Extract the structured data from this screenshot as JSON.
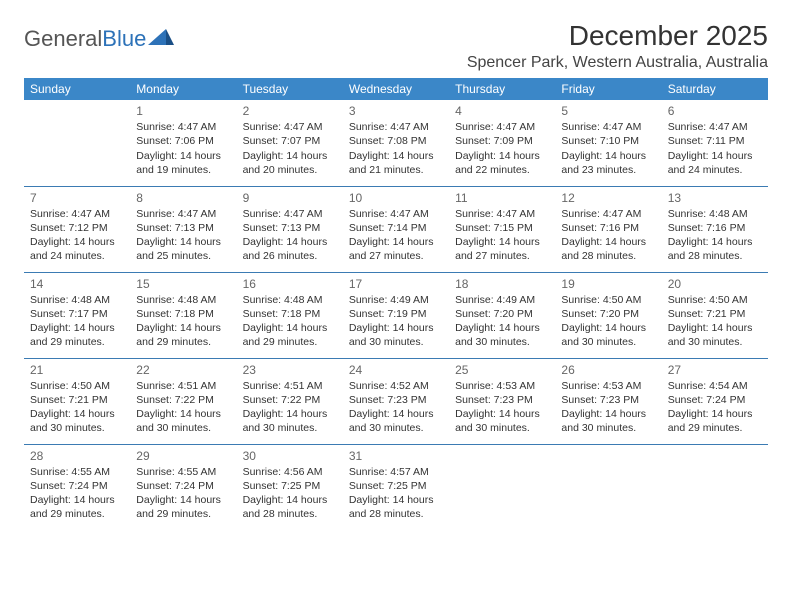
{
  "logo": {
    "word1": "General",
    "word2": "Blue"
  },
  "title": "December 2025",
  "location": "Spencer Park, Western Australia, Australia",
  "day_headers": [
    "Sunday",
    "Monday",
    "Tuesday",
    "Wednesday",
    "Thursday",
    "Friday",
    "Saturday"
  ],
  "colors": {
    "header_bg": "#3b87c8",
    "header_text": "#ffffff",
    "row_border": "#3b7bb3",
    "logo_blue": "#2d72b8"
  },
  "weeks": [
    [
      {
        "day": "",
        "sunrise": "",
        "sunset": "",
        "daylight": ""
      },
      {
        "day": "1",
        "sunrise": "Sunrise: 4:47 AM",
        "sunset": "Sunset: 7:06 PM",
        "daylight": "Daylight: 14 hours and 19 minutes."
      },
      {
        "day": "2",
        "sunrise": "Sunrise: 4:47 AM",
        "sunset": "Sunset: 7:07 PM",
        "daylight": "Daylight: 14 hours and 20 minutes."
      },
      {
        "day": "3",
        "sunrise": "Sunrise: 4:47 AM",
        "sunset": "Sunset: 7:08 PM",
        "daylight": "Daylight: 14 hours and 21 minutes."
      },
      {
        "day": "4",
        "sunrise": "Sunrise: 4:47 AM",
        "sunset": "Sunset: 7:09 PM",
        "daylight": "Daylight: 14 hours and 22 minutes."
      },
      {
        "day": "5",
        "sunrise": "Sunrise: 4:47 AM",
        "sunset": "Sunset: 7:10 PM",
        "daylight": "Daylight: 14 hours and 23 minutes."
      },
      {
        "day": "6",
        "sunrise": "Sunrise: 4:47 AM",
        "sunset": "Sunset: 7:11 PM",
        "daylight": "Daylight: 14 hours and 24 minutes."
      }
    ],
    [
      {
        "day": "7",
        "sunrise": "Sunrise: 4:47 AM",
        "sunset": "Sunset: 7:12 PM",
        "daylight": "Daylight: 14 hours and 24 minutes."
      },
      {
        "day": "8",
        "sunrise": "Sunrise: 4:47 AM",
        "sunset": "Sunset: 7:13 PM",
        "daylight": "Daylight: 14 hours and 25 minutes."
      },
      {
        "day": "9",
        "sunrise": "Sunrise: 4:47 AM",
        "sunset": "Sunset: 7:13 PM",
        "daylight": "Daylight: 14 hours and 26 minutes."
      },
      {
        "day": "10",
        "sunrise": "Sunrise: 4:47 AM",
        "sunset": "Sunset: 7:14 PM",
        "daylight": "Daylight: 14 hours and 27 minutes."
      },
      {
        "day": "11",
        "sunrise": "Sunrise: 4:47 AM",
        "sunset": "Sunset: 7:15 PM",
        "daylight": "Daylight: 14 hours and 27 minutes."
      },
      {
        "day": "12",
        "sunrise": "Sunrise: 4:47 AM",
        "sunset": "Sunset: 7:16 PM",
        "daylight": "Daylight: 14 hours and 28 minutes."
      },
      {
        "day": "13",
        "sunrise": "Sunrise: 4:48 AM",
        "sunset": "Sunset: 7:16 PM",
        "daylight": "Daylight: 14 hours and 28 minutes."
      }
    ],
    [
      {
        "day": "14",
        "sunrise": "Sunrise: 4:48 AM",
        "sunset": "Sunset: 7:17 PM",
        "daylight": "Daylight: 14 hours and 29 minutes."
      },
      {
        "day": "15",
        "sunrise": "Sunrise: 4:48 AM",
        "sunset": "Sunset: 7:18 PM",
        "daylight": "Daylight: 14 hours and 29 minutes."
      },
      {
        "day": "16",
        "sunrise": "Sunrise: 4:48 AM",
        "sunset": "Sunset: 7:18 PM",
        "daylight": "Daylight: 14 hours and 29 minutes."
      },
      {
        "day": "17",
        "sunrise": "Sunrise: 4:49 AM",
        "sunset": "Sunset: 7:19 PM",
        "daylight": "Daylight: 14 hours and 30 minutes."
      },
      {
        "day": "18",
        "sunrise": "Sunrise: 4:49 AM",
        "sunset": "Sunset: 7:20 PM",
        "daylight": "Daylight: 14 hours and 30 minutes."
      },
      {
        "day": "19",
        "sunrise": "Sunrise: 4:50 AM",
        "sunset": "Sunset: 7:20 PM",
        "daylight": "Daylight: 14 hours and 30 minutes."
      },
      {
        "day": "20",
        "sunrise": "Sunrise: 4:50 AM",
        "sunset": "Sunset: 7:21 PM",
        "daylight": "Daylight: 14 hours and 30 minutes."
      }
    ],
    [
      {
        "day": "21",
        "sunrise": "Sunrise: 4:50 AM",
        "sunset": "Sunset: 7:21 PM",
        "daylight": "Daylight: 14 hours and 30 minutes."
      },
      {
        "day": "22",
        "sunrise": "Sunrise: 4:51 AM",
        "sunset": "Sunset: 7:22 PM",
        "daylight": "Daylight: 14 hours and 30 minutes."
      },
      {
        "day": "23",
        "sunrise": "Sunrise: 4:51 AM",
        "sunset": "Sunset: 7:22 PM",
        "daylight": "Daylight: 14 hours and 30 minutes."
      },
      {
        "day": "24",
        "sunrise": "Sunrise: 4:52 AM",
        "sunset": "Sunset: 7:23 PM",
        "daylight": "Daylight: 14 hours and 30 minutes."
      },
      {
        "day": "25",
        "sunrise": "Sunrise: 4:53 AM",
        "sunset": "Sunset: 7:23 PM",
        "daylight": "Daylight: 14 hours and 30 minutes."
      },
      {
        "day": "26",
        "sunrise": "Sunrise: 4:53 AM",
        "sunset": "Sunset: 7:23 PM",
        "daylight": "Daylight: 14 hours and 30 minutes."
      },
      {
        "day": "27",
        "sunrise": "Sunrise: 4:54 AM",
        "sunset": "Sunset: 7:24 PM",
        "daylight": "Daylight: 14 hours and 29 minutes."
      }
    ],
    [
      {
        "day": "28",
        "sunrise": "Sunrise: 4:55 AM",
        "sunset": "Sunset: 7:24 PM",
        "daylight": "Daylight: 14 hours and 29 minutes."
      },
      {
        "day": "29",
        "sunrise": "Sunrise: 4:55 AM",
        "sunset": "Sunset: 7:24 PM",
        "daylight": "Daylight: 14 hours and 29 minutes."
      },
      {
        "day": "30",
        "sunrise": "Sunrise: 4:56 AM",
        "sunset": "Sunset: 7:25 PM",
        "daylight": "Daylight: 14 hours and 28 minutes."
      },
      {
        "day": "31",
        "sunrise": "Sunrise: 4:57 AM",
        "sunset": "Sunset: 7:25 PM",
        "daylight": "Daylight: 14 hours and 28 minutes."
      },
      {
        "day": "",
        "sunrise": "",
        "sunset": "",
        "daylight": ""
      },
      {
        "day": "",
        "sunrise": "",
        "sunset": "",
        "daylight": ""
      },
      {
        "day": "",
        "sunrise": "",
        "sunset": "",
        "daylight": ""
      }
    ]
  ]
}
